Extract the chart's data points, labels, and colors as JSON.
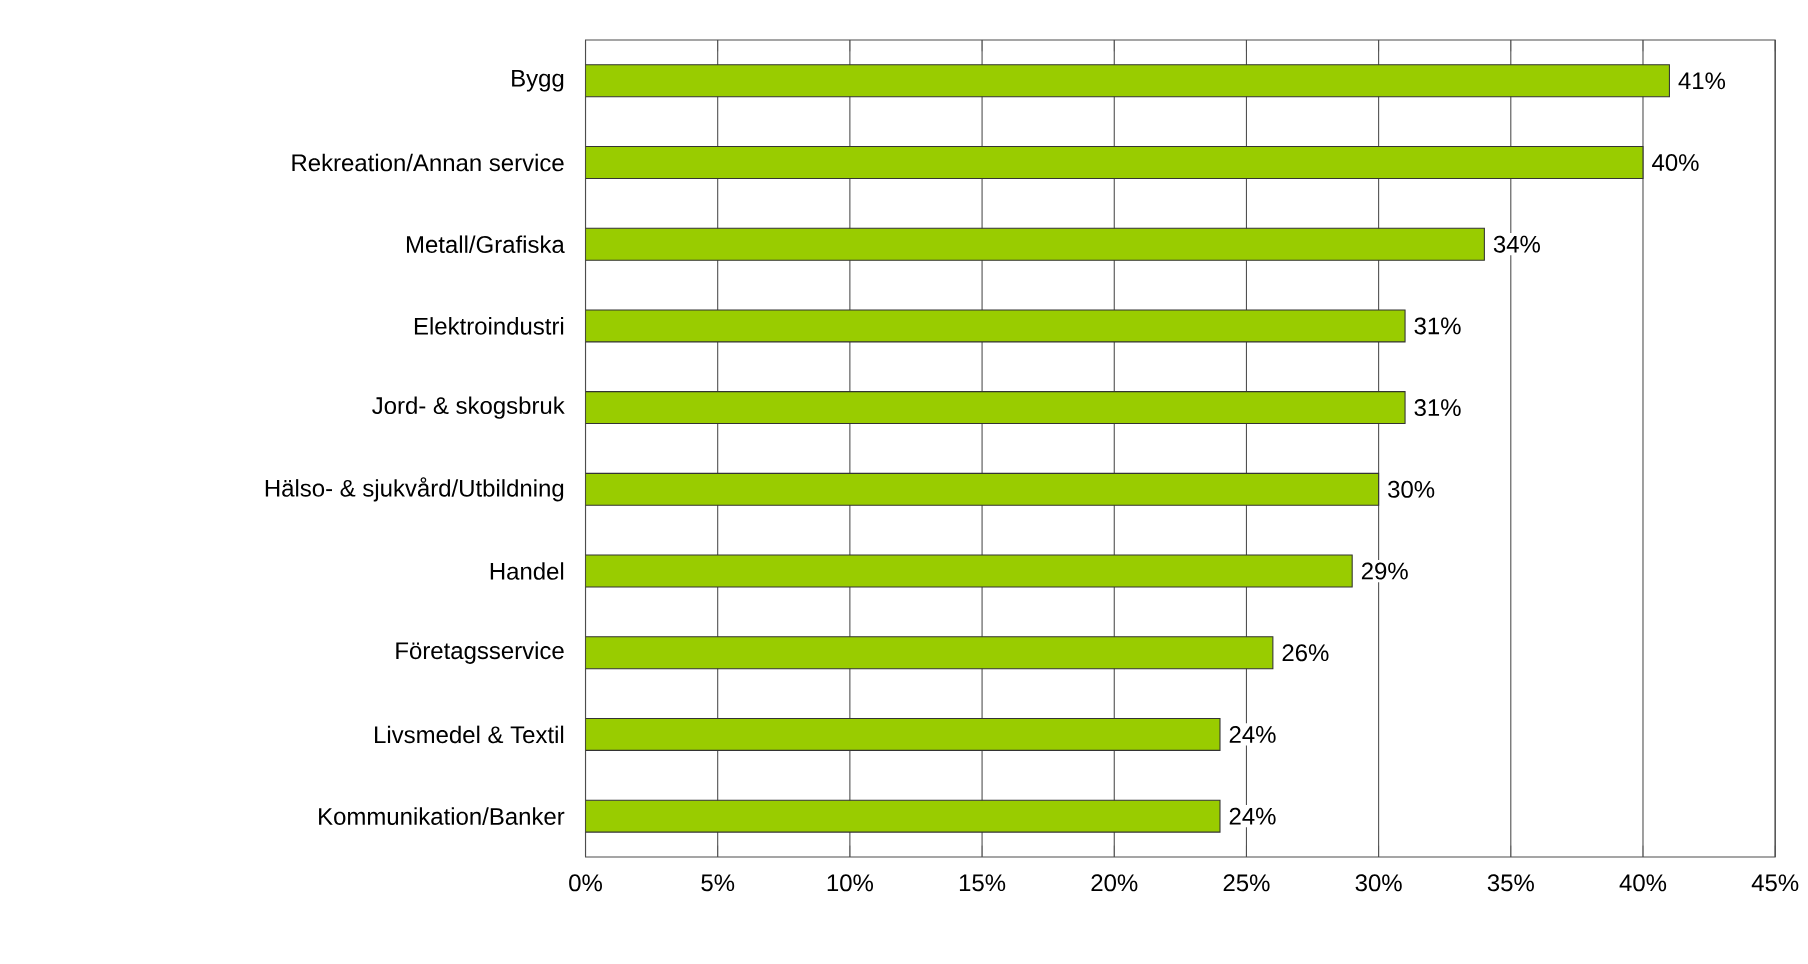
{
  "chart_data": {
    "type": "bar",
    "orientation": "horizontal",
    "categories": [
      "Bygg",
      "Rekreation/Annan service",
      "Metall/Grafiska",
      "Elektroindustri",
      "Jord- & skogsbruk",
      "Hälso- & sjukvård/Utbildning",
      "Handel",
      "Företagsservice",
      "Livsmedel & Textil",
      "Kommunikation/Banker"
    ],
    "values": [
      41,
      40,
      34,
      31,
      31,
      30,
      29,
      26,
      24,
      24
    ],
    "value_labels": [
      "41%",
      "40%",
      "34%",
      "31%",
      "31%",
      "30%",
      "29%",
      "26%",
      "24%",
      "24%"
    ],
    "color": "#99cc00",
    "xlim": [
      0,
      45
    ],
    "xticks": [
      {
        "value": 0,
        "label": "0%"
      },
      {
        "value": 5,
        "label": "5%"
      },
      {
        "value": 10,
        "label": "10%"
      },
      {
        "value": 15,
        "label": "15%"
      },
      {
        "value": 20,
        "label": "20%"
      },
      {
        "value": 25,
        "label": "25%"
      },
      {
        "value": 30,
        "label": "30%"
      },
      {
        "value": 35,
        "label": "35%"
      },
      {
        "value": 40,
        "label": "40%"
      },
      {
        "value": 45,
        "label": "45%"
      }
    ],
    "grid": "x"
  }
}
